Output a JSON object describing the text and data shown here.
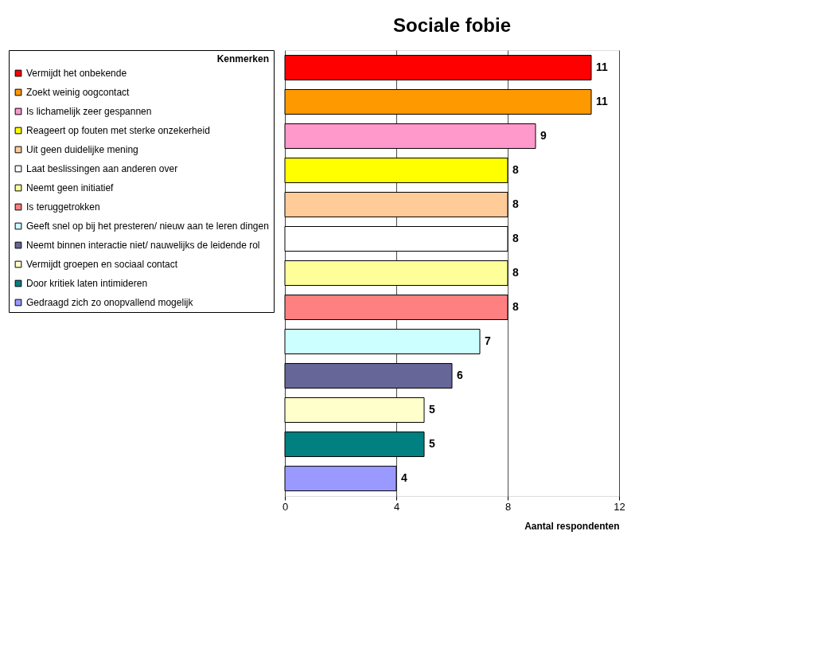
{
  "chart_data": {
    "type": "bar",
    "orientation": "horizontal",
    "title": "Sociale fobie",
    "xlabel": "Aantal respondenten",
    "legend_title": "Kenmerken",
    "categories": [
      null,
      null,
      null,
      null,
      null,
      null,
      null,
      null,
      null,
      null,
      null,
      null,
      null
    ],
    "series": [
      {
        "name": "Vermijdt het onbekende",
        "color": "#ff0000",
        "values": [
          11,
          null,
          null,
          null,
          null,
          null,
          null,
          null,
          null,
          null,
          null,
          null,
          null
        ]
      },
      {
        "name": "Zoekt weinig oogcontact",
        "color": "#ff9900",
        "values": [
          null,
          11,
          null,
          null,
          null,
          null,
          null,
          null,
          null,
          null,
          null,
          null,
          null
        ]
      },
      {
        "name": "Is lichamelijk zeer gespannen",
        "color": "#ff99cc",
        "values": [
          null,
          null,
          9,
          null,
          null,
          null,
          null,
          null,
          null,
          null,
          null,
          null,
          null
        ]
      },
      {
        "name": "Reageert op fouten met sterke onzekerheid",
        "color": "#ffff00",
        "values": [
          null,
          null,
          null,
          8,
          null,
          null,
          null,
          null,
          null,
          null,
          null,
          null,
          null
        ]
      },
      {
        "name": "Uit geen duidelijke mening",
        "color": "#ffcc99",
        "values": [
          null,
          null,
          null,
          null,
          8,
          null,
          null,
          null,
          null,
          null,
          null,
          null,
          null
        ]
      },
      {
        "name": "Laat beslissingen aan anderen over",
        "color": "#ffffff",
        "values": [
          null,
          null,
          null,
          null,
          null,
          8,
          null,
          null,
          null,
          null,
          null,
          null,
          null
        ]
      },
      {
        "name": "Neemt geen initiatief",
        "color": "#ffff99",
        "values": [
          null,
          null,
          null,
          null,
          null,
          null,
          8,
          null,
          null,
          null,
          null,
          null,
          null
        ]
      },
      {
        "name": "Is teruggetrokken",
        "color": "#ff8080",
        "values": [
          null,
          null,
          null,
          null,
          null,
          null,
          null,
          8,
          null,
          null,
          null,
          null,
          null
        ]
      },
      {
        "name": "Geeft snel op bij het presteren/ nieuw aan te leren dingen",
        "color": "#ccffff",
        "values": [
          null,
          null,
          null,
          null,
          null,
          null,
          null,
          null,
          7,
          null,
          null,
          null,
          null
        ]
      },
      {
        "name": "Neemt binnen interactie niet/ nauwelijks de leidende rol",
        "color": "#666699",
        "values": [
          null,
          null,
          null,
          null,
          null,
          null,
          null,
          null,
          null,
          6,
          null,
          null,
          null
        ]
      },
      {
        "name": "Vermijdt groepen en sociaal contact",
        "color": "#ffffcc",
        "values": [
          null,
          null,
          null,
          null,
          null,
          null,
          null,
          null,
          null,
          null,
          5,
          null,
          null
        ]
      },
      {
        "name": "Door kritiek laten intimideren",
        "color": "#008080",
        "values": [
          null,
          null,
          null,
          null,
          null,
          null,
          null,
          null,
          null,
          null,
          null,
          5,
          null
        ]
      },
      {
        "name": "Gedraagd zich zo onopvallend mogelijk",
        "color": "#9999ff",
        "values": [
          null,
          null,
          null,
          null,
          null,
          null,
          null,
          null,
          null,
          null,
          null,
          null,
          4
        ]
      }
    ],
    "xlim": [
      0,
      12
    ],
    "xticks": [
      0,
      4,
      8,
      12
    ],
    "grid": "x",
    "legend": "left",
    "tick_labels": "x",
    "data_labels": true
  }
}
